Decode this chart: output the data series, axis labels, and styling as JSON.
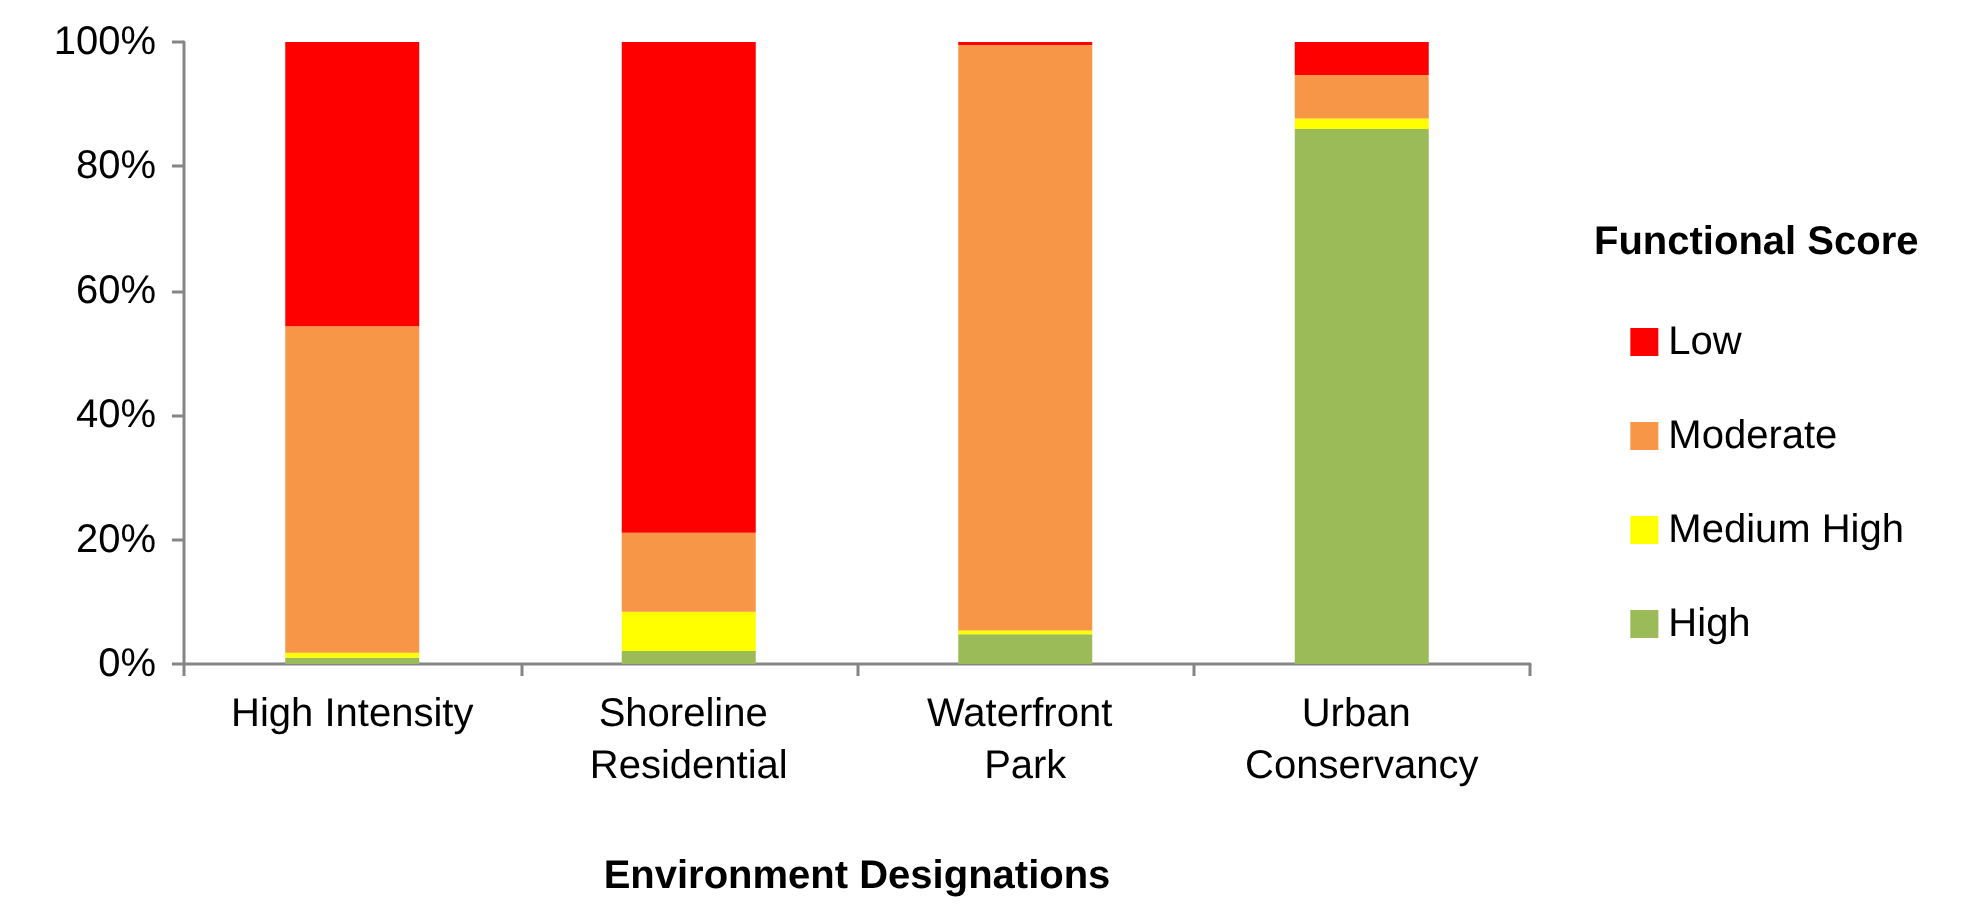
{
  "chart_data": {
    "type": "bar",
    "stacked": true,
    "xlabel": "Environment Designations",
    "legend_title": "Functional Score",
    "categories": [
      "High Intensity",
      "Shoreline Residential",
      "Waterfront Park",
      "Urban Conservancy"
    ],
    "series": [
      {
        "name": "High",
        "color": "#9bbb59",
        "values": [
          1.0,
          2.1,
          4.8,
          86.0
        ]
      },
      {
        "name": "Medium High",
        "color": "#ffff00",
        "values": [
          0.8,
          6.3,
          0.6,
          1.7
        ]
      },
      {
        "name": "Moderate",
        "color": "#f79646",
        "values": [
          52.5,
          12.7,
          94.1,
          7.0
        ]
      },
      {
        "name": "Low",
        "color": "#ff0000",
        "values": [
          45.7,
          78.9,
          0.5,
          5.3
        ]
      }
    ],
    "ylim": [
      0,
      100
    ],
    "yticks": [
      {
        "value": 0,
        "label": "0%"
      },
      {
        "value": 20,
        "label": "20%"
      },
      {
        "value": 40,
        "label": "40%"
      },
      {
        "value": 60,
        "label": "60%"
      },
      {
        "value": 80,
        "label": "80%"
      },
      {
        "value": 100,
        "label": "100%"
      }
    ],
    "grid": false,
    "legend": "right"
  }
}
